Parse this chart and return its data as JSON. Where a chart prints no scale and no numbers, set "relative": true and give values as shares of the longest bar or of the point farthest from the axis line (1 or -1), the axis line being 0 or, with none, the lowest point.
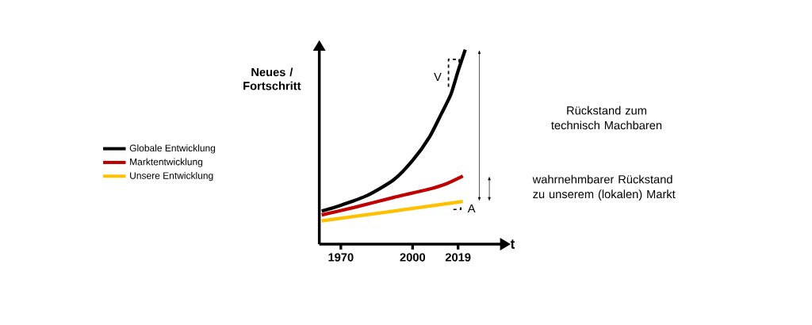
{
  "chart_data": {
    "type": "line",
    "relative": true,
    "xlabel": "t",
    "ylabel": "Neues / Fortschritt",
    "xlim": [
      1961,
      2037
    ],
    "xticks": [
      1970,
      2000,
      2019
    ],
    "tick_labels": "x",
    "legend": "left",
    "series": [
      {
        "name": "Globale Entwicklung",
        "color": "#000000",
        "x": [
          1962,
          1970,
          1981,
          1992,
          2000,
          2007,
          2012,
          2016,
          2019,
          2022
        ],
        "values": [
          0.17,
          0.2,
          0.25,
          0.33,
          0.43,
          0.55,
          0.67,
          0.77,
          0.89,
          1
        ]
      },
      {
        "name": "Marktentwicklung",
        "color": "#c00000",
        "x": [
          1962,
          1976,
          1992,
          2006,
          2014,
          2021
        ],
        "values": [
          0.15,
          0.19,
          0.24,
          0.28,
          0.31,
          0.35
        ]
      },
      {
        "name": "Unsere Entwicklung",
        "color": "#ffc000",
        "x": [
          1962,
          1992,
          2021
        ],
        "values": [
          0.12,
          0.17,
          0.22
        ]
      }
    ],
    "annotations": [
      {
        "text": "V",
        "x": 2015,
        "y": 0.82
      },
      {
        "text": "A",
        "x": 2021,
        "y": 0.2
      },
      "Rückstand zum technisch Machbaren",
      "wahrnehmbarer Rückstand zu unserem (lokalen) Markt"
    ]
  }
}
